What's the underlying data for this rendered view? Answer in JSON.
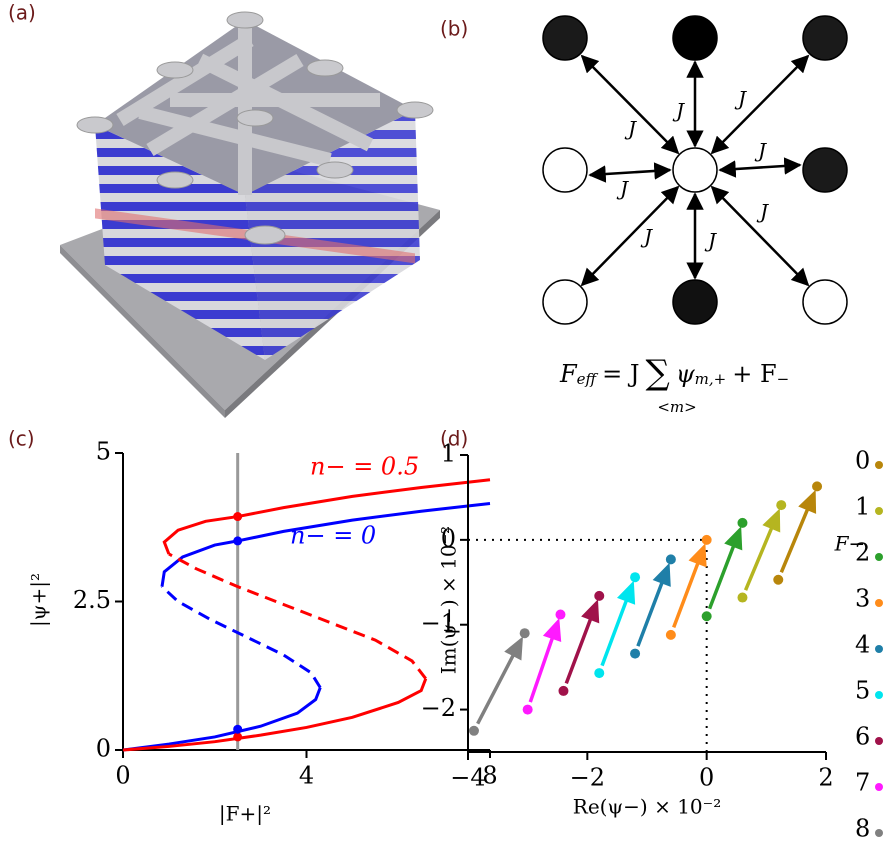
{
  "panels": [
    "(a)",
    "(b)",
    "(c)",
    "(d)"
  ],
  "diagram": {
    "coupling_labels": [
      "J",
      "J",
      "J",
      "J",
      "J",
      "J",
      "J",
      "J"
    ],
    "formula": {
      "lhs": "F",
      "lhs_sub": "eff",
      "rhs": "= J",
      "sum": "∑",
      "sum_index": "<m>",
      "term": "ψ",
      "term_sub": "m,+",
      "tail": "+ F",
      "tail_sub": "−"
    }
  },
  "chart_data": [
    {
      "type": "line",
      "xlabel": "|F+|²",
      "ylabel": "|ψ+|²",
      "xlim": [
        0,
        8
      ],
      "ylim": [
        0,
        5
      ],
      "xticks": [
        0,
        4,
        8
      ],
      "yticks": [
        0,
        2.5,
        5
      ],
      "series": [
        {
          "color": "#0000ff",
          "dash": false,
          "x": [
            0,
            1,
            2,
            3,
            3.8,
            4.2,
            4.3
          ],
          "values": [
            0,
            0.1,
            0.22,
            0.4,
            0.62,
            0.85,
            1.05
          ]
        },
        {
          "color": "#0000ff",
          "dash": true,
          "x": [
            4.3,
            4.1,
            3.5,
            2.7,
            1.9,
            1.2,
            0.85
          ],
          "values": [
            1.05,
            1.3,
            1.6,
            1.9,
            2.2,
            2.5,
            2.75
          ]
        },
        {
          "color": "#0000ff",
          "dash": false,
          "x": [
            0.85,
            0.9,
            1.3,
            2,
            2.5,
            3.5,
            5,
            6.5,
            8
          ],
          "values": [
            2.75,
            3.0,
            3.25,
            3.45,
            3.52,
            3.68,
            3.87,
            4.02,
            4.15
          ]
        },
        {
          "color": "#ff0000",
          "dash": false,
          "x": [
            0,
            1,
            2,
            3,
            4,
            5,
            6,
            6.5,
            6.6
          ],
          "values": [
            0,
            0.06,
            0.14,
            0.25,
            0.38,
            0.55,
            0.8,
            1.0,
            1.2
          ]
        },
        {
          "color": "#ff0000",
          "dash": true,
          "x": [
            6.6,
            6.3,
            5.5,
            4.5,
            3.5,
            2.5,
            1.6,
            1.0
          ],
          "values": [
            1.2,
            1.5,
            1.85,
            2.15,
            2.45,
            2.75,
            3.05,
            3.3
          ]
        },
        {
          "color": "#ff0000",
          "dash": false,
          "x": [
            1.0,
            0.9,
            1.2,
            1.8,
            2.5,
            3.5,
            5,
            6.5,
            8
          ],
          "values": [
            3.3,
            3.5,
            3.7,
            3.85,
            3.93,
            4.08,
            4.27,
            4.42,
            4.55
          ]
        }
      ],
      "annotations": [
        {
          "text": "n− = 0.5",
          "color": "#ff0000"
        },
        {
          "text": "n− = 0",
          "color": "#0000ff"
        }
      ],
      "vline": 2.5,
      "points": [
        {
          "x": 2.5,
          "y": 3.93,
          "color": "#ff0000"
        },
        {
          "x": 2.5,
          "y": 0.22,
          "color": "#ff0000"
        },
        {
          "x": 2.5,
          "y": 3.52,
          "color": "#0000ff"
        },
        {
          "x": 2.5,
          "y": 0.35,
          "color": "#0000ff"
        }
      ]
    },
    {
      "type": "scatter",
      "xlabel": "Re(ψ−) × 10⁻²",
      "ylabel": "Im(ψ−) × 10⁻²",
      "xlim": [
        -4,
        2
      ],
      "ylim": [
        -2.5,
        1
      ],
      "xticks": [
        {
          "value": -4,
          "label": "−4"
        },
        {
          "value": -2,
          "label": "−2"
        },
        0,
        2
      ],
      "yticks": [
        {
          "value": -2,
          "label": "−2"
        },
        {
          "value": -1,
          "label": "−1"
        },
        0,
        1
      ],
      "zero_lines": true,
      "annotation": "F−",
      "series": [
        {
          "name": "0",
          "color": "#b8860b",
          "x": [
            1.2,
            1.85
          ],
          "values": [
            -0.47,
            0.63
          ]
        },
        {
          "name": "1",
          "color": "#b5b520",
          "x": [
            0.6,
            1.25
          ],
          "values": [
            -0.68,
            0.41
          ]
        },
        {
          "name": "2",
          "color": "#2ca02c",
          "x": [
            0,
            0.6
          ],
          "values": [
            -0.9,
            0.2
          ]
        },
        {
          "name": "3",
          "color": "#ff8c1a",
          "x": [
            -0.6,
            0
          ],
          "values": [
            -1.12,
            0
          ]
        },
        {
          "name": "4",
          "color": "#1f7fa8",
          "x": [
            -1.2,
            -0.6
          ],
          "values": [
            -1.34,
            -0.23
          ]
        },
        {
          "name": "5",
          "color": "#00e5ee",
          "x": [
            -1.8,
            -1.2
          ],
          "values": [
            -1.57,
            -0.44
          ]
        },
        {
          "name": "6",
          "color": "#a0124a",
          "x": [
            -2.4,
            -1.8
          ],
          "values": [
            -1.78,
            -0.66
          ]
        },
        {
          "name": "7",
          "color": "#ff1aff",
          "x": [
            -3.0,
            -2.45
          ],
          "values": [
            -2.0,
            -0.88
          ]
        },
        {
          "name": "8",
          "color": "#808080",
          "x": [
            -3.9,
            -3.05
          ],
          "values": [
            -2.25,
            -1.1
          ]
        }
      ]
    }
  ]
}
